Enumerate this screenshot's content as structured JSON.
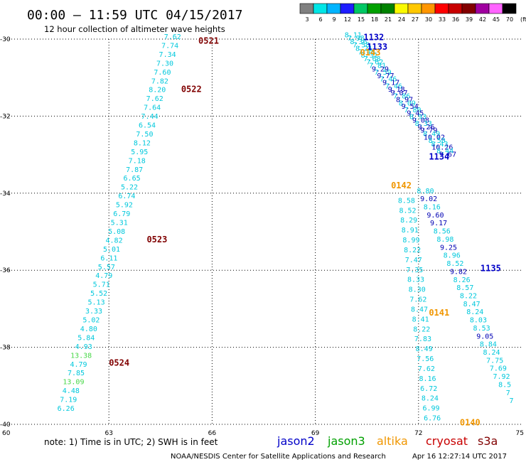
{
  "header": {
    "title": "00:00 – 11:59 UTC 04/15/2017",
    "subtitle": "12 hour collection of altimeter wave heights"
  },
  "colorbar": {
    "unit": "(ft)",
    "labels": [
      "3",
      "6",
      "9",
      "12",
      "15",
      "18",
      "21",
      "24",
      "27",
      "30",
      "33",
      "36",
      "39",
      "42",
      "45",
      "70"
    ],
    "colors": [
      "#808080",
      "#00e6e6",
      "#00b4ff",
      "#1e1eff",
      "#00c864",
      "#00a000",
      "#008200",
      "#fafa00",
      "#ffc800",
      "#ff9600",
      "#ff0000",
      "#c80000",
      "#820000",
      "#a000a0",
      "#ff64ff",
      "#000000"
    ]
  },
  "footer": {
    "note": "note:  1) Time is in UTC;  2) SWH is in feet",
    "credit": "NOAA/NESDIS Center for Satellite Applications and Research",
    "timestamp": "Apr 16 12:27:14 UTC 2017"
  },
  "legend": [
    {
      "name": "jason2",
      "color": "#0000c8"
    },
    {
      "name": "jason3",
      "color": "#00a000"
    },
    {
      "name": "altika",
      "color": "#f09600"
    },
    {
      "name": "cryosat",
      "color": "#c80000"
    },
    {
      "name": "s3a",
      "color": "#800000"
    }
  ],
  "chart_data": {
    "type": "scatter",
    "title": "00:00 – 11:59 UTC 04/15/2017",
    "subtitle": "12 hour collection of altimeter wave heights",
    "xlim": [
      60,
      75
    ],
    "ylim": [
      -40,
      -30
    ],
    "x_ticks": [
      "60",
      "63",
      "66",
      "69",
      "72",
      "75"
    ],
    "y_ticks": [
      "-30",
      "-32",
      "-34",
      "-36",
      "-38",
      "-40"
    ],
    "grid": true,
    "value_units": "ft",
    "passes": [
      {
        "label": "0521",
        "satellite": "s3a",
        "lon": 65.6,
        "lat": -30.05
      },
      {
        "label": "0522",
        "satellite": "s3a",
        "lon": 65.1,
        "lat": -31.3
      },
      {
        "label": "0523",
        "satellite": "s3a",
        "lon": 64.1,
        "lat": -35.2
      },
      {
        "label": "0524",
        "satellite": "s3a",
        "lon": 63.0,
        "lat": -38.4
      },
      {
        "label": "1132",
        "satellite": "jason2",
        "lon": 70.4,
        "lat": -29.95
      },
      {
        "label": "1133",
        "satellite": "jason2",
        "lon": 70.5,
        "lat": -30.2
      },
      {
        "label": "0143",
        "satellite": "altika",
        "lon": 70.3,
        "lat": -30.35
      },
      {
        "label": "1134",
        "satellite": "jason2",
        "lon": 72.3,
        "lat": -33.05
      },
      {
        "label": "0142",
        "satellite": "altika",
        "lon": 71.2,
        "lat": -33.8
      },
      {
        "label": "1135",
        "satellite": "jason2",
        "lon": 73.8,
        "lat": -35.95
      },
      {
        "label": "0141",
        "satellite": "altika",
        "lon": 72.3,
        "lat": -37.1
      },
      {
        "label": "0140",
        "satellite": "altika",
        "lon": 73.2,
        "lat": -39.95
      }
    ],
    "tracks": [
      {
        "satellite": "s3a",
        "lon_start": 64.85,
        "lat_start": -30.0,
        "lon_end": 61.75,
        "lat_end": -39.65,
        "values": [
          "7.62",
          "7.74",
          "7.34",
          "7.30",
          "7.60",
          "7.82",
          "8.20",
          "7.62",
          "7.64",
          "7.44",
          "6.54",
          "7.50",
          "8.12",
          "5.95",
          "7.18",
          "7.87",
          "6.65",
          "5.22",
          "6.74",
          "5.92",
          "6.79",
          "5.31",
          "5.08",
          "4.82",
          "5.01",
          "6.11",
          "5.57",
          "4.79",
          "5.71",
          "5.52",
          "5.13",
          "3.33",
          "5.02",
          "4.80",
          "5.84",
          "4.93",
          "13.38",
          "4.79",
          "7.85",
          "13.09",
          "4.48",
          "7.19",
          "6.26"
        ],
        "colors": [
          "c",
          "c",
          "c",
          "c",
          "c",
          "c",
          "c",
          "c",
          "c",
          "c",
          "c",
          "c",
          "c",
          "c",
          "c",
          "c",
          "c",
          "c",
          "c",
          "c",
          "c",
          "c",
          "c",
          "c",
          "c",
          "c",
          "c",
          "c",
          "c",
          "c",
          "c",
          "c",
          "c",
          "c",
          "c",
          "c",
          "g",
          "c",
          "c",
          "g",
          "c",
          "c",
          "c"
        ]
      },
      {
        "satellite": "jason2",
        "lon_start": 70.1,
        "lat_start": -29.95,
        "lon_end": 72.85,
        "lat_end": -33.05,
        "values": [
          "8.11",
          "7.98",
          "8.36",
          "7.58",
          "8.21",
          "7.48",
          "8.31",
          "7.68",
          "7.62",
          "7.81",
          "9.29",
          "7.59",
          "9.77",
          "7.46",
          "9.17",
          "7.46",
          "9.18",
          "9.07",
          "7.86",
          "8.97",
          "8.09",
          "9.54",
          "7.80",
          "9.45",
          "8.93",
          "9.08",
          "8.33",
          "9.26",
          "9.79",
          "8.49",
          "10.02",
          "8.50",
          "8.43",
          "10.26",
          "8.44",
          "9.67"
        ],
        "colors": [
          "c",
          "c",
          "c",
          "c",
          "c",
          "c",
          "c",
          "c",
          "c",
          "c",
          "b",
          "c",
          "b",
          "c",
          "b",
          "c",
          "b",
          "b",
          "c",
          "b",
          "c",
          "b",
          "c",
          "b",
          "c",
          "b",
          "c",
          "b",
          "b",
          "c",
          "b",
          "c",
          "c",
          "b",
          "c",
          "b"
        ]
      },
      {
        "satellite": "jason2",
        "lon_start": 72.2,
        "lat_start": -34.0,
        "lon_end": 74.7,
        "lat_end": -39.45,
        "values": [
          "8.80",
          "9.02",
          "8.16",
          "9.60",
          "9.17",
          "8.56",
          "8.98",
          "9.25",
          "8.96",
          "8.52",
          "9.82",
          "8.26",
          "8.57",
          "8.22",
          "8.47",
          "8.24",
          "8.03",
          "8.53",
          "9.05",
          "8.84",
          "8.24",
          "7.75",
          "7.69",
          "7.92",
          "8.5",
          "7",
          "7"
        ],
        "colors": [
          "c",
          "b",
          "c",
          "b",
          "b",
          "c",
          "c",
          "b",
          "c",
          "c",
          "b",
          "c",
          "c",
          "c",
          "c",
          "c",
          "c",
          "c",
          "b",
          "c",
          "c",
          "c",
          "c",
          "c",
          "c",
          "c",
          "c"
        ]
      },
      {
        "satellite": "altika",
        "lon_start": 71.65,
        "lat_start": -34.25,
        "lon_end": 72.4,
        "lat_end": -39.9,
        "values": [
          "8.58",
          "8.52",
          "8.29",
          "8.91",
          "8.99",
          "8.22",
          "7.47",
          "7.35",
          "8.33",
          "8.30",
          "7.62",
          "8.47",
          "8.41",
          "8.22",
          "7.83",
          "8.49",
          "7.56",
          "7.62",
          "8.16",
          "6.72",
          "8.24",
          "6.99",
          "6.76"
        ],
        "colors": [
          "c",
          "c",
          "c",
          "c",
          "c",
          "c",
          "c",
          "c",
          "c",
          "c",
          "c",
          "c",
          "c",
          "c",
          "c",
          "c",
          "c",
          "c",
          "c",
          "c",
          "c",
          "c",
          "c"
        ]
      }
    ]
  }
}
